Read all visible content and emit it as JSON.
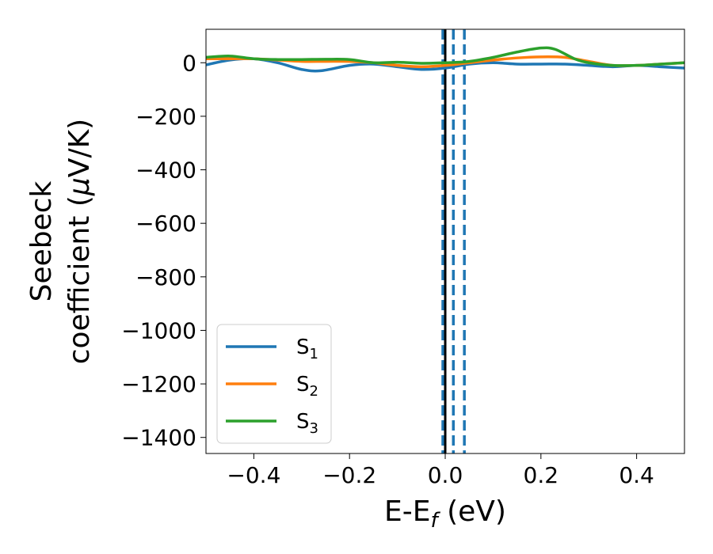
{
  "chart_data": {
    "type": "line",
    "xlabel": "E-E",
    "xlabel_sub": "f",
    "xlabel_unit": " (eV)",
    "ylabel_line1": "Seebeck",
    "ylabel_line2": "coefficient  (",
    "ylabel_mu": "μ",
    "ylabel_unit": "V/K)",
    "xlim": [
      -0.5,
      0.5
    ],
    "ylim": [
      -1460,
      125
    ],
    "xticks": [
      -0.4,
      -0.2,
      0.0,
      0.2,
      0.4
    ],
    "xtick_labels": [
      "−0.4",
      "−0.2",
      "0.0",
      "0.2",
      "0.4"
    ],
    "yticks": [
      0,
      -200,
      -400,
      -600,
      -800,
      -1000,
      -1200,
      -1400
    ],
    "ytick_labels": [
      "0",
      "−200",
      "−400",
      "−600",
      "−800",
      "−1000",
      "−1200",
      "−1400"
    ],
    "legend_position": "lower-left",
    "vlines": [
      {
        "x": 0.0,
        "style": "solid",
        "color": "#000000"
      },
      {
        "x": -0.005,
        "style": "dashed",
        "color": "#1f77b4"
      },
      {
        "x": 0.017,
        "style": "dashed",
        "color": "#1f77b4"
      },
      {
        "x": 0.04,
        "style": "dashed",
        "color": "#1f77b4"
      }
    ],
    "series": [
      {
        "name": "S",
        "sub": "1",
        "color": "#1f77b4",
        "x": [
          -0.5,
          -0.45,
          -0.4,
          -0.35,
          -0.3,
          -0.26,
          -0.2,
          -0.15,
          -0.1,
          -0.05,
          0.0,
          0.05,
          0.1,
          0.15,
          0.2,
          0.25,
          0.3,
          0.35,
          0.4,
          0.45,
          0.5
        ],
        "y": [
          -8,
          10,
          15,
          0,
          -25,
          -30,
          -10,
          -5,
          -15,
          -25,
          -20,
          -5,
          0,
          -5,
          -5,
          -5,
          -10,
          -15,
          -10,
          -15,
          -20
        ]
      },
      {
        "name": "S",
        "sub": "2",
        "color": "#ff7f0e",
        "x": [
          -0.5,
          -0.45,
          -0.4,
          -0.35,
          -0.3,
          -0.25,
          -0.2,
          -0.15,
          -0.1,
          -0.05,
          0.0,
          0.05,
          0.1,
          0.15,
          0.2,
          0.25,
          0.3,
          0.35,
          0.4,
          0.45,
          0.5
        ],
        "y": [
          15,
          15,
          15,
          10,
          5,
          5,
          5,
          0,
          -10,
          -15,
          -10,
          0,
          10,
          18,
          22,
          20,
          5,
          -10,
          -10,
          -5,
          0
        ]
      },
      {
        "name": "S",
        "sub": "3",
        "color": "#2ca02c",
        "x": [
          -0.5,
          -0.45,
          -0.4,
          -0.35,
          -0.3,
          -0.25,
          -0.2,
          -0.15,
          -0.1,
          -0.05,
          0.0,
          0.05,
          0.1,
          0.15,
          0.2,
          0.23,
          0.27,
          0.3,
          0.35,
          0.4,
          0.45,
          0.5
        ],
        "y": [
          20,
          25,
          15,
          12,
          12,
          13,
          12,
          0,
          2,
          -2,
          0,
          5,
          20,
          40,
          55,
          50,
          15,
          0,
          -10,
          -10,
          -5,
          0
        ]
      }
    ]
  }
}
